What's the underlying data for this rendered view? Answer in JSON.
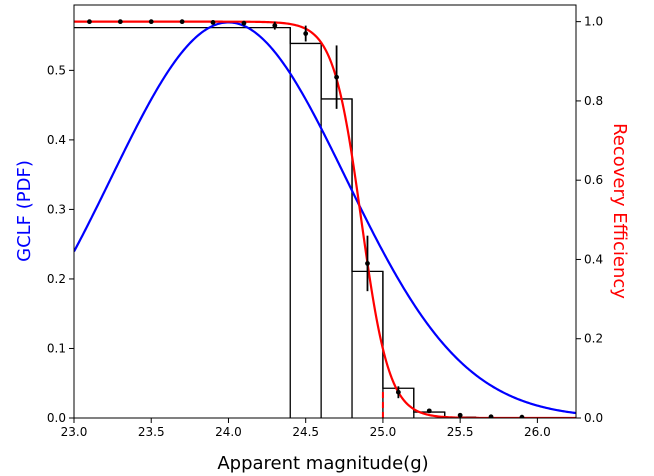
{
  "chart_data": {
    "type": "line",
    "xlabel": "Apparent magnitude(g)",
    "ylabel_left": "GCLF (PDF)",
    "ylabel_right": "Recovery Efficiency",
    "xlim": [
      23.0,
      26.25
    ],
    "ylim_left": [
      0.0,
      0.594
    ],
    "ylim_right": [
      0.0,
      1.042
    ],
    "x_ticks": [
      "23.0",
      "23.5",
      "24.0",
      "24.5",
      "25.0",
      "25.5",
      "26.0"
    ],
    "y_left_ticks": [
      "0.0",
      "0.1",
      "0.2",
      "0.3",
      "0.4",
      "0.5"
    ],
    "y_right_ticks": [
      "0.0",
      "0.2",
      "0.4",
      "0.6",
      "0.8",
      "1.0"
    ],
    "colors": {
      "gclf": "#0000ff",
      "recovery_fit": "#ff0000",
      "histogram": "#000000",
      "data_points": "#000000",
      "limit_line": "#ff0000",
      "left_label": "#0000ff",
      "right_label": "#ff0000"
    },
    "gclf": {
      "axis": "left",
      "peak_mag": 24.0,
      "sigma": 0.76,
      "peak_value": 0.569
    },
    "recovery_fit": {
      "axis": "right",
      "function": "logistic",
      "m50": 24.86,
      "width": 0.09,
      "max": 1.0
    },
    "histogram": {
      "axis": "right",
      "bin_edges": [
        22.2,
        24.4,
        24.6,
        24.8,
        25.0,
        25.2,
        25.4,
        25.6
      ],
      "values": [
        0.985,
        0.945,
        0.805,
        0.37,
        0.075,
        0.015,
        0.002
      ]
    },
    "data_points": {
      "axis": "right",
      "x": [
        23.1,
        23.3,
        23.5,
        23.7,
        23.9,
        24.1,
        24.3,
        24.5,
        24.7,
        24.9,
        25.1,
        25.3,
        25.5,
        25.7,
        25.9
      ],
      "y": [
        1.0,
        1.0,
        1.0,
        1.0,
        0.998,
        0.996,
        0.99,
        0.97,
        0.86,
        0.39,
        0.065,
        0.018,
        0.007,
        0.003,
        0.002
      ],
      "yerr": [
        0.0,
        0.0,
        0.0,
        0.0,
        0.004,
        0.006,
        0.01,
        0.02,
        0.08,
        0.07,
        0.015,
        0.004,
        0.002,
        0.001,
        0.001
      ]
    },
    "limit_line": {
      "x": 25.0,
      "y_top": 0.075,
      "style": "dashed"
    }
  }
}
